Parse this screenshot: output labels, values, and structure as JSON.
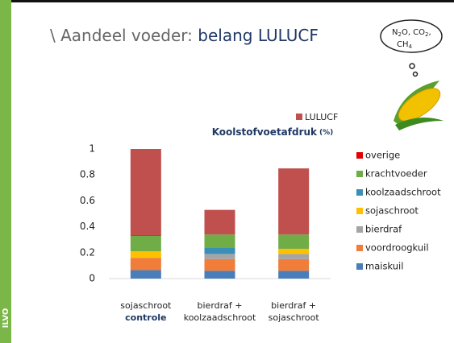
{
  "slide": {
    "title_plain": "\\ Aandeel voeder: ",
    "title_highlight": "belang LULUCF",
    "logo": "ILVO",
    "cloud": [
      "N",
      "2",
      "O, CO",
      "2",
      ",",
      "CH",
      "4"
    ]
  },
  "chart_data": {
    "type": "stacked_bar",
    "title": "Koolstofvoetafdruk",
    "unit": "(%)",
    "categories": [
      [
        "sojaschroot",
        "controle"
      ],
      [
        "bierdraf +",
        "koolzaadschroot"
      ],
      [
        "bierdraf +",
        "sojaschroot"
      ]
    ],
    "ylim": [
      0,
      1
    ],
    "yticks": [
      0,
      0.2,
      0.4,
      0.6,
      0.8,
      1
    ],
    "series": [
      {
        "name": "maiskuil",
        "color": "#4a7ebb",
        "values": [
          0.065,
          0.06,
          0.06
        ]
      },
      {
        "name": "voordroogkuil",
        "color": "#f07d3a",
        "values": [
          0.095,
          0.09,
          0.09
        ]
      },
      {
        "name": "bierdraf",
        "color": "#a5a5a5",
        "values": [
          0,
          0.04,
          0.04
        ]
      },
      {
        "name": "sojaschroot",
        "color": "#ffc000",
        "values": [
          0.05,
          0,
          0.04
        ]
      },
      {
        "name": "koolzaadschroot",
        "color": "#3a8fb7",
        "values": [
          0,
          0.05,
          0
        ]
      },
      {
        "name": "krachtvoeder",
        "color": "#70ad47",
        "values": [
          0.12,
          0.1,
          0.11
        ]
      },
      {
        "name": "overige",
        "color": "#e00000",
        "values": [
          0.005,
          0,
          0
        ]
      },
      {
        "name": "LULUCF",
        "color": "#c0504d",
        "values": [
          0.665,
          0.19,
          0.51
        ]
      }
    ]
  }
}
